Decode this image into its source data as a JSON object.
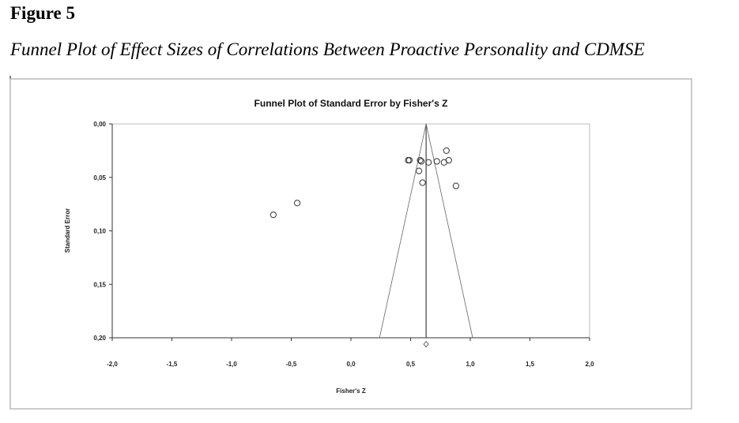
{
  "figure": {
    "label": "Figure 5",
    "caption": "Funnel Plot of Effect Sizes of Correlations Between Proactive Personality and CDMSE"
  },
  "chart_data": {
    "type": "scatter",
    "title": "Funnel Plot of Standard Error by Fisher's Z",
    "xlabel": "Fisher's Z",
    "ylabel": "Standard Error",
    "xlim": [
      -2.0,
      2.0
    ],
    "ylim": [
      0.0,
      0.2
    ],
    "y_inverted": true,
    "x_ticks": [
      "-2,0",
      "-1,5",
      "-1,0",
      "-0,5",
      "0,0",
      "0,5",
      "1,0",
      "1,5",
      "2,0"
    ],
    "x_tick_values": [
      -2.0,
      -1.5,
      -1.0,
      -0.5,
      0.0,
      0.5,
      1.0,
      1.5,
      2.0
    ],
    "y_ticks": [
      "0,00",
      "0,05",
      "0,10",
      "0,15",
      "0,20"
    ],
    "y_tick_values": [
      0.0,
      0.05,
      0.1,
      0.15,
      0.2
    ],
    "combined_effect": 0.63,
    "funnel_bottom_se": 0.2,
    "funnel_bottom_x": [
      0.24,
      1.02
    ],
    "points": [
      {
        "x": -0.65,
        "y": 0.085
      },
      {
        "x": -0.45,
        "y": 0.074
      },
      {
        "x": 0.48,
        "y": 0.034
      },
      {
        "x": 0.49,
        "y": 0.034
      },
      {
        "x": 0.58,
        "y": 0.034
      },
      {
        "x": 0.59,
        "y": 0.035
      },
      {
        "x": 0.65,
        "y": 0.036
      },
      {
        "x": 0.72,
        "y": 0.035
      },
      {
        "x": 0.78,
        "y": 0.036
      },
      {
        "x": 0.82,
        "y": 0.034
      },
      {
        "x": 0.8,
        "y": 0.025
      },
      {
        "x": 0.57,
        "y": 0.044
      },
      {
        "x": 0.6,
        "y": 0.055
      },
      {
        "x": 0.88,
        "y": 0.058
      }
    ],
    "imputed_point": {
      "x": 0.63,
      "y": 0.206
    }
  }
}
